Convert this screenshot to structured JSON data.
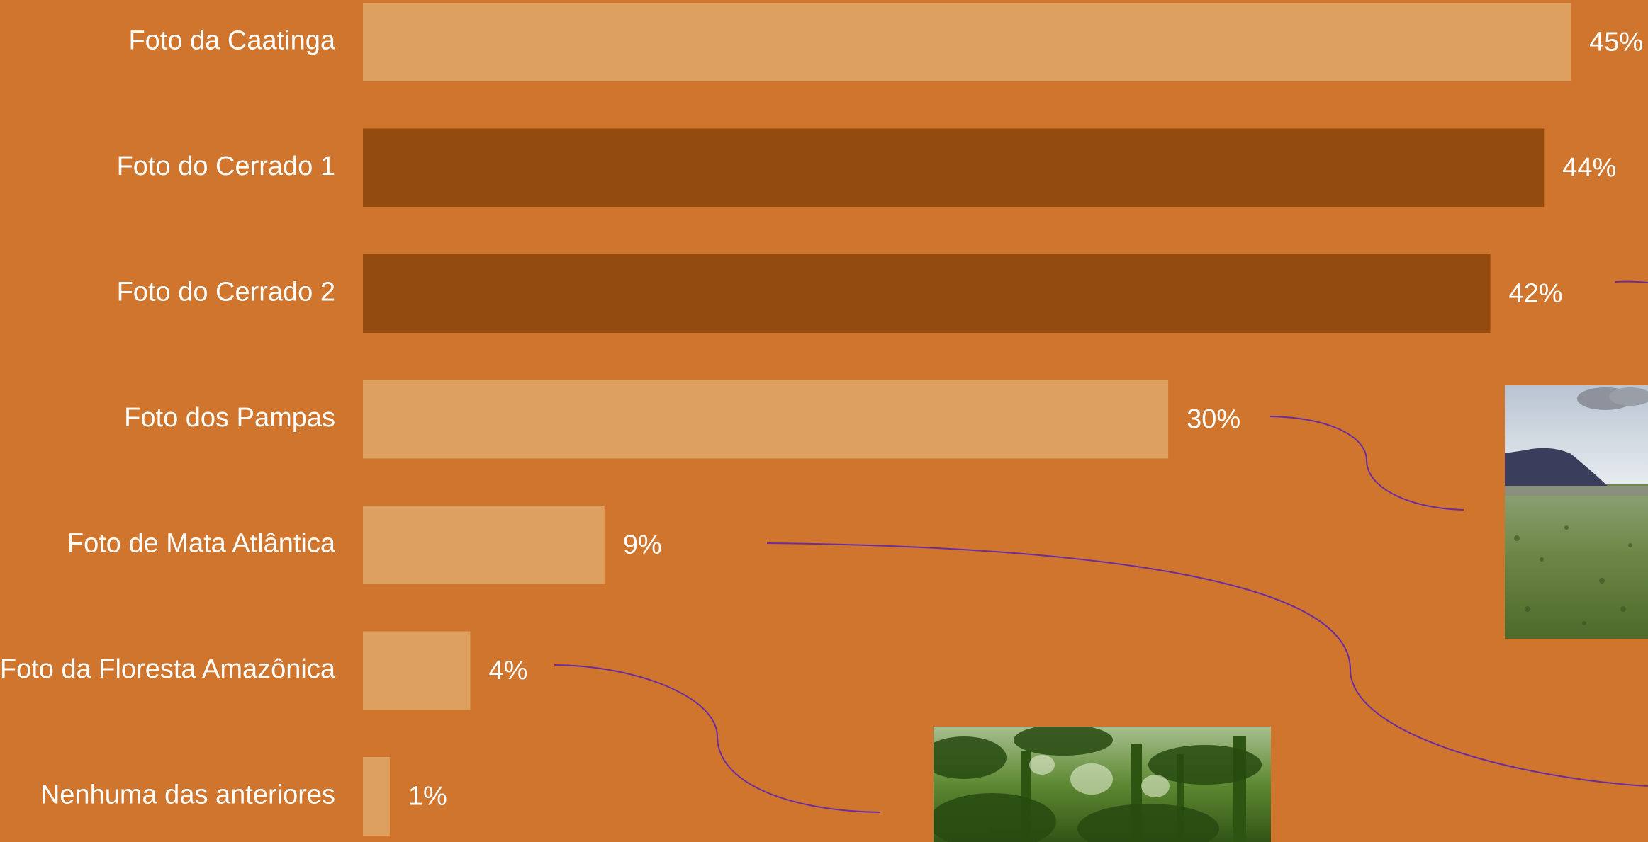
{
  "colors": {
    "background": "#CF752E",
    "bar_light": "#DDA05E",
    "bar_dark": "#934C0D",
    "text": "#FFFFFF",
    "connector": "#6A2DA0"
  },
  "chart_data": {
    "type": "bar",
    "orientation": "horizontal",
    "categories": [
      "Foto da Caatinga",
      "Foto do Cerrado 1",
      "Foto do Cerrado 2",
      "Foto dos Pampas",
      "Foto de Mata Atlântica",
      "Foto da Floresta Amazônica",
      "Nenhuma das anteriores"
    ],
    "values": [
      45,
      44,
      42,
      30,
      9,
      4,
      1
    ],
    "value_labels": [
      "45%",
      "44%",
      "42%",
      "30%",
      "9%",
      "4%",
      "1%"
    ],
    "bar_shades": [
      "light",
      "dark",
      "dark",
      "light",
      "light",
      "light",
      "light"
    ],
    "unit": "%",
    "xlim": [
      0,
      45
    ],
    "grid": false,
    "legend": "none"
  },
  "photos": {
    "pampas": "pampas-landscape-photo",
    "amazonia": "amazon-forest-photo"
  }
}
